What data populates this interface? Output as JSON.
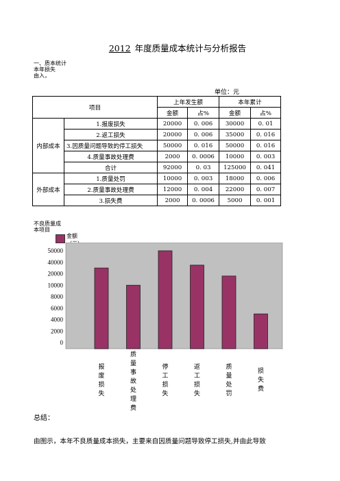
{
  "report": {
    "title_year": "2012",
    "title_rest": "年度质量成本统计与分析报告",
    "section1_label": "一、质本统计",
    "section1_sub": "本年损失",
    "section1_sub2": "由入，",
    "unit": "单位：元"
  },
  "table": {
    "header_item": "项目",
    "header_prev": "上年发生额",
    "header_cur": "本年累计",
    "sub_amount": "金额",
    "sub_pct": "占%",
    "internal_label": "内部成本",
    "external_label": "外部成本",
    "internal_rows": [
      {
        "name": "1.报废损失",
        "prev_amt": "20000",
        "prev_pct": "0. 006",
        "cur_amt": "30000",
        "cur_pct": "0. 01"
      },
      {
        "name": "2.返工损失",
        "prev_amt": "20000",
        "prev_pct": "0. 006",
        "cur_amt": "35000",
        "cur_pct": "0. 016"
      },
      {
        "name": "3.因质量问题导致的停工损失",
        "prev_amt": "50000",
        "prev_pct": "0. 016",
        "cur_amt": "50000",
        "cur_pct": "0. 016"
      },
      {
        "name": "4.质量事故处理费",
        "prev_amt": "2000",
        "prev_pct": "0. 0006",
        "cur_amt": "10000",
        "cur_pct": "0. 003"
      }
    ],
    "subtotal": {
      "name": "合计",
      "prev_amt": "92000",
      "prev_pct": "0. 03",
      "cur_amt": "125000",
      "cur_pct": "0. 041"
    },
    "external_rows": [
      {
        "name": "1.质量处罚",
        "prev_amt": "10000",
        "prev_pct": "0. 003",
        "cur_amt": "18000",
        "cur_pct": "0. 006"
      },
      {
        "name": "2.质量事故处理费",
        "prev_amt": "12000",
        "prev_pct": "0. 004",
        "cur_amt": "22000",
        "cur_pct": "0. 007"
      },
      {
        "name": "3.损失费",
        "prev_amt": "2000",
        "prev_pct": "0. 0006",
        "cur_amt": "5000",
        "cur_pct": "0. 001"
      }
    ]
  },
  "chart_data": {
    "type": "bar",
    "title": "不良质量成本项目",
    "legend": "金额（元）",
    "ticks": [
      "50000",
      "40000",
      "20000",
      "10000",
      "8000",
      "6000",
      "4000",
      "2000",
      "0"
    ],
    "categories": [
      "报废损失",
      "质量事故处理费",
      "停工损失",
      "返工损失",
      "质量处罚",
      "损失费"
    ],
    "values": [
      30000,
      10000,
      50000,
      35000,
      18000,
      5000
    ],
    "bar_color": "#993366",
    "plot_color": "#c0c0c0"
  },
  "summary": {
    "heading": "总结：",
    "text": "由图示，本年不良质量成本损失，主要来自因质量问题导致停工损失,并由此导致"
  }
}
